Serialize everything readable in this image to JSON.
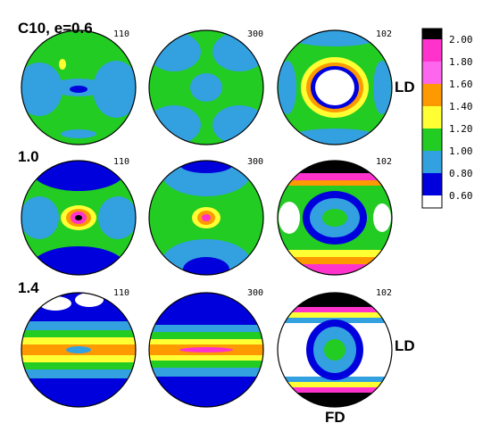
{
  "rows": [
    {
      "label": "C10, e=0.6",
      "figures": [
        {
          "pole": "110"
        },
        {
          "pole": "300"
        },
        {
          "pole": "102"
        }
      ]
    },
    {
      "label": "1.0",
      "figures": [
        {
          "pole": "110"
        },
        {
          "pole": "300"
        },
        {
          "pole": "102"
        }
      ]
    },
    {
      "label": "1.4",
      "figures": [
        {
          "pole": "110"
        },
        {
          "pole": "300"
        },
        {
          "pole": "102"
        }
      ]
    }
  ],
  "direction_labels": {
    "ld_top": "LD",
    "ld_bottom": "LD",
    "fd": "FD"
  },
  "colorbar": {
    "ticks": [
      "2.00",
      "1.80",
      "1.60",
      "1.40",
      "1.20",
      "1.00",
      "0.80",
      "0.60"
    ],
    "colors": [
      "#000000",
      "#ff33cc",
      "#ff66ee",
      "#ff9900",
      "#ffff33",
      "#22cc22",
      "#33a0e0",
      "#0000dd",
      "#ffffff"
    ]
  },
  "palette": {
    "white": "#ffffff",
    "blue": "#0000dd",
    "lightblue": "#33a0e0",
    "green": "#22cc22",
    "yellow": "#ffff33",
    "orange": "#ff9900",
    "pink": "#ff66ee",
    "magenta": "#ff33cc",
    "black": "#000000"
  }
}
